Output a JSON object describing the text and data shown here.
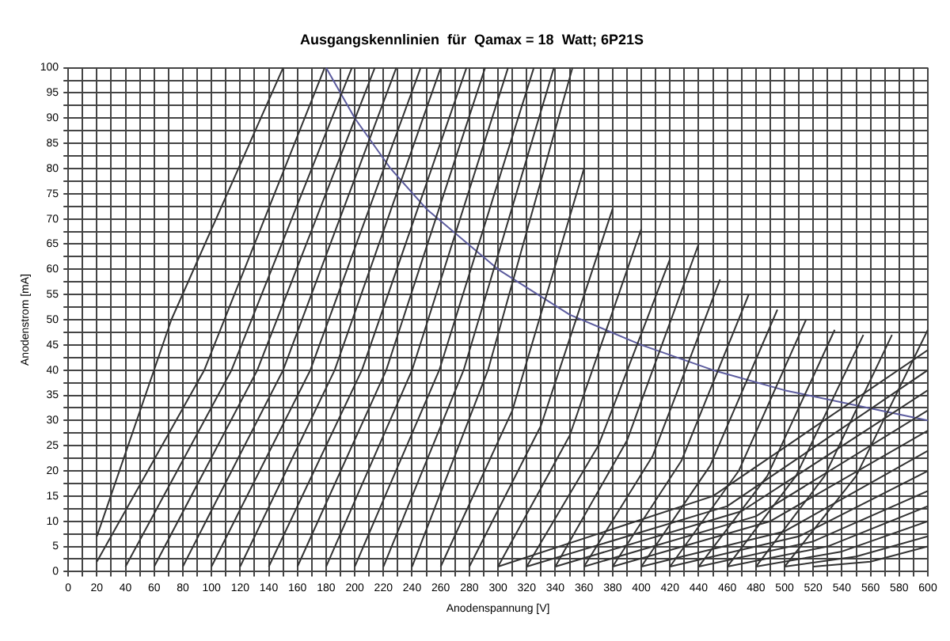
{
  "chart_data": {
    "type": "line",
    "title": "Ausgangskennlinien  für  Qamax = 18  Watt; 6P21S",
    "xlabel": "Anodenspannung [V]",
    "ylabel": "Anodenstrom [mA]",
    "xlim": [
      0,
      600
    ],
    "ylim": [
      0,
      100
    ],
    "grid": true,
    "legend": false,
    "marker": "none",
    "line_style": "solid",
    "xticks": [
      0,
      {
        "value": 10,
        "label": null
      },
      20,
      {
        "value": 30,
        "label": null
      },
      40,
      {
        "value": 50,
        "label": null
      },
      60,
      {
        "value": 70,
        "label": null
      },
      80,
      {
        "value": 90,
        "label": null
      },
      100,
      {
        "value": 110,
        "label": null
      },
      120,
      {
        "value": 130,
        "label": null
      },
      140,
      {
        "value": 150,
        "label": null
      },
      160,
      {
        "value": 170,
        "label": null
      },
      180,
      {
        "value": 190,
        "label": null
      },
      200,
      {
        "value": 210,
        "label": null
      },
      220,
      {
        "value": 230,
        "label": null
      },
      240,
      {
        "value": 250,
        "label": null
      },
      260,
      {
        "value": 270,
        "label": null
      },
      280,
      {
        "value": 290,
        "label": null
      },
      300,
      {
        "value": 310,
        "label": null
      },
      320,
      {
        "value": 330,
        "label": null
      },
      340,
      {
        "value": 350,
        "label": null
      },
      360,
      {
        "value": 370,
        "label": null
      },
      380,
      {
        "value": 390,
        "label": null
      },
      400,
      {
        "value": 410,
        "label": null
      },
      420,
      {
        "value": 430,
        "label": null
      },
      440,
      {
        "value": 450,
        "label": null
      },
      460,
      {
        "value": 470,
        "label": null
      },
      480,
      {
        "value": 490,
        "label": null
      },
      500,
      {
        "value": 510,
        "label": null
      },
      520,
      {
        "value": 530,
        "label": null
      },
      540,
      {
        "value": 550,
        "label": null
      },
      560,
      {
        "value": 570,
        "label": null
      },
      580,
      {
        "value": 590,
        "label": null
      },
      600
    ],
    "yticks": [
      0,
      {
        "value": 2.5,
        "label": null
      },
      5,
      {
        "value": 7.5,
        "label": null
      },
      10,
      {
        "value": 12.5,
        "label": null
      },
      15,
      {
        "value": 17.5,
        "label": null
      },
      20,
      {
        "value": 22.5,
        "label": null
      },
      25,
      {
        "value": 27.5,
        "label": null
      },
      30,
      {
        "value": 32.5,
        "label": null
      },
      35,
      {
        "value": 37.5,
        "label": null
      },
      40,
      {
        "value": 42.5,
        "label": null
      },
      45,
      {
        "value": 47.5,
        "label": null
      },
      50,
      {
        "value": 52.5,
        "label": null
      },
      55,
      {
        "value": 57.5,
        "label": null
      },
      60,
      {
        "value": 62.5,
        "label": null
      },
      65,
      {
        "value": 67.5,
        "label": null
      },
      70,
      {
        "value": 72.5,
        "label": null
      },
      75,
      {
        "value": 77.5,
        "label": null
      },
      80,
      {
        "value": 82.5,
        "label": null
      },
      85,
      {
        "value": 87.5,
        "label": null
      },
      90,
      {
        "value": 92.5,
        "label": null
      },
      95,
      {
        "value": 97.5,
        "label": null
      },
      100
    ],
    "series": [
      {
        "color": "#333333",
        "x": [
          20,
          72,
          150
        ],
        "values": [
          7,
          50,
          100
        ]
      },
      {
        "color": "#333333",
        "x": [
          20,
          95,
          179
        ],
        "values": [
          2,
          40,
          100
        ]
      },
      {
        "color": "#333333",
        "x": [
          40,
          114,
          198
        ],
        "values": [
          1,
          40,
          100
        ]
      },
      {
        "color": "#333333",
        "x": [
          60,
          132,
          214
        ],
        "values": [
          1,
          40,
          100
        ]
      },
      {
        "color": "#333333",
        "x": [
          80,
          150,
          229
        ],
        "values": [
          1,
          40,
          100
        ]
      },
      {
        "color": "#333333",
        "x": [
          100,
          169,
          246
        ],
        "values": [
          1,
          40,
          100
        ]
      },
      {
        "color": "#333333",
        "x": [
          120,
          186,
          260
        ],
        "values": [
          1,
          40,
          100
        ]
      },
      {
        "color": "#333333",
        "x": [
          140,
          205,
          278
        ],
        "values": [
          1,
          40,
          100
        ]
      },
      {
        "color": "#333333",
        "x": [
          160,
          222,
          291
        ],
        "values": [
          1,
          40,
          100
        ]
      },
      {
        "color": "#333333",
        "x": [
          180,
          240,
          307
        ],
        "values": [
          1,
          40,
          100
        ]
      },
      {
        "color": "#333333",
        "x": [
          200,
          259,
          325
        ],
        "values": [
          1,
          40,
          100
        ]
      },
      {
        "color": "#333333",
        "x": [
          220,
          276,
          339
        ],
        "values": [
          1,
          40,
          100
        ]
      },
      {
        "color": "#333333",
        "x": [
          240,
          293,
          352
        ],
        "values": [
          1,
          40,
          100
        ]
      },
      {
        "color": "#333333",
        "x": [
          260,
          310,
          360
        ],
        "values": [
          1,
          32,
          80
        ]
      },
      {
        "color": "#333333",
        "x": [
          280,
          330,
          380
        ],
        "values": [
          1,
          29,
          72
        ]
      },
      {
        "color": "#333333",
        "x": [
          300,
          350,
          400
        ],
        "values": [
          1,
          27,
          68
        ]
      },
      {
        "color": "#333333",
        "x": [
          320,
          370,
          420
        ],
        "values": [
          1,
          25,
          62
        ]
      },
      {
        "color": "#333333",
        "x": [
          340,
          390,
          440
        ],
        "values": [
          1,
          26,
          65
        ]
      },
      {
        "color": "#333333",
        "x": [
          360,
          408,
          455
        ],
        "values": [
          1,
          23,
          58
        ]
      },
      {
        "color": "#333333",
        "x": [
          380,
          428,
          475
        ],
        "values": [
          1,
          22,
          55
        ]
      },
      {
        "color": "#333333",
        "x": [
          400,
          448,
          495
        ],
        "values": [
          1,
          21,
          52
        ]
      },
      {
        "color": "#333333",
        "x": [
          420,
          468,
          515
        ],
        "values": [
          1,
          20,
          50
        ]
      },
      {
        "color": "#333333",
        "x": [
          440,
          488,
          535
        ],
        "values": [
          1,
          19,
          48
        ]
      },
      {
        "color": "#333333",
        "x": [
          460,
          508,
          555
        ],
        "values": [
          1,
          19,
          47
        ]
      },
      {
        "color": "#333333",
        "x": [
          480,
          528,
          575
        ],
        "values": [
          1,
          19,
          47
        ]
      },
      {
        "color": "#333333",
        "x": [
          500,
          550,
          600
        ],
        "values": [
          1,
          19,
          48
        ]
      },
      {
        "color": "#333333",
        "x": [
          300,
          450,
          600
        ],
        "values": [
          1,
          15,
          44
        ]
      },
      {
        "color": "#333333",
        "x": [
          320,
          460,
          600
        ],
        "values": [
          1,
          13,
          40
        ]
      },
      {
        "color": "#333333",
        "x": [
          340,
          470,
          600
        ],
        "values": [
          1,
          12,
          36
        ]
      },
      {
        "color": "#333333",
        "x": [
          360,
          480,
          600
        ],
        "values": [
          1,
          11,
          32
        ]
      },
      {
        "color": "#333333",
        "x": [
          380,
          490,
          600
        ],
        "values": [
          1,
          10,
          28
        ]
      },
      {
        "color": "#333333",
        "x": [
          400,
          500,
          600
        ],
        "values": [
          1,
          8,
          24
        ]
      },
      {
        "color": "#333333",
        "x": [
          420,
          510,
          600
        ],
        "values": [
          1,
          7,
          20
        ]
      },
      {
        "color": "#333333",
        "x": [
          440,
          520,
          600
        ],
        "values": [
          1,
          6,
          16
        ]
      },
      {
        "color": "#333333",
        "x": [
          460,
          530,
          600
        ],
        "values": [
          1,
          5,
          13
        ]
      },
      {
        "color": "#333333",
        "x": [
          480,
          540,
          600
        ],
        "values": [
          1,
          4,
          10
        ]
      },
      {
        "color": "#333333",
        "x": [
          500,
          550,
          600
        ],
        "values": [
          1,
          3,
          7
        ]
      },
      {
        "color": "#333333",
        "x": [
          520,
          560,
          600
        ],
        "values": [
          1,
          2,
          5
        ]
      },
      {
        "color": "#5b5b9e",
        "x": [
          180,
          200,
          225,
          250,
          300,
          350,
          400,
          450,
          500,
          550,
          600
        ],
        "values": [
          100,
          90,
          80,
          72,
          60,
          51,
          45,
          40,
          36,
          33,
          30
        ]
      }
    ]
  }
}
